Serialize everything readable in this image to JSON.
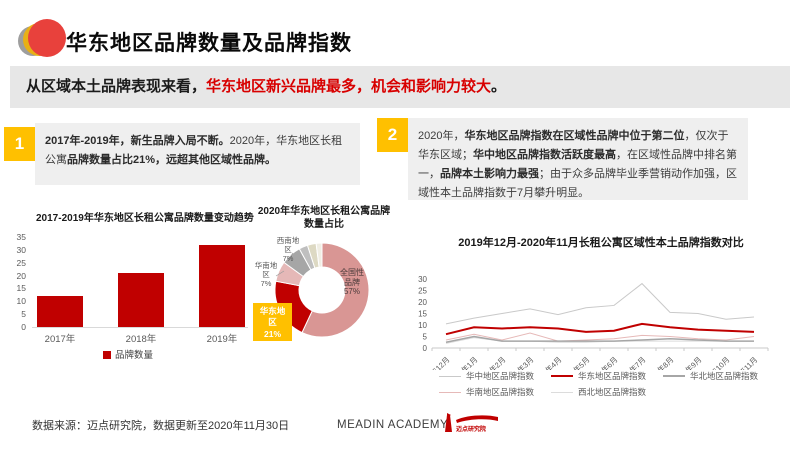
{
  "page": {
    "title": "华东地区品牌数量及品牌指数"
  },
  "key_message": {
    "black": "从区域本土品牌表现来看，",
    "red": "华东地区新兴品牌最多，机会和影响力较大",
    "end": "。"
  },
  "notes": [
    {
      "number": "1",
      "segments": [
        {
          "text": "2017年-2019年，新生品牌入局不断。",
          "bold": true
        },
        {
          "text": "2020年，华东地区长租公寓",
          "bold": false
        },
        {
          "text": "品牌数量占比21%，远超其他区域性品牌。",
          "bold": true
        }
      ]
    },
    {
      "number": "2",
      "segments": [
        {
          "text": "2020年，",
          "bold": false
        },
        {
          "text": "华东地区品牌指数在区域性品牌中位于第二位",
          "bold": true
        },
        {
          "text": "，仅次于华东区域；",
          "bold": false
        },
        {
          "text": "华中地区品牌指数活跃度最高",
          "bold": true
        },
        {
          "text": "，在区域性品牌中排名第一，",
          "bold": false
        },
        {
          "text": "品牌本土影响力最强",
          "bold": true
        },
        {
          "text": "；由于众多品牌毕业季营销动作加强，区域性本土品牌指数于7月攀升明显。",
          "bold": false
        }
      ]
    }
  ],
  "chart_data": [
    {
      "type": "bar",
      "title": "2017-2019年华东地区长租公寓品牌数量变动趋势",
      "categories": [
        "2017年",
        "2018年",
        "2019年"
      ],
      "values": [
        12,
        21,
        32
      ],
      "ylim": [
        0,
        35
      ],
      "ytick_step": 5,
      "bar_color": "#c00000",
      "legend": [
        {
          "label": "品牌数量",
          "color": "#c00000"
        }
      ]
    },
    {
      "type": "pie",
      "title": "2020年华东地区长租公寓品牌数量占比",
      "donut": true,
      "slices": [
        {
          "label": "全国性品牌",
          "value": 57,
          "color": "#d99694"
        },
        {
          "label": "华东地区",
          "value": 21,
          "color": "#c00000",
          "highlight": true
        },
        {
          "label": "华南地区",
          "value": 7,
          "color": "#e5b8b7"
        },
        {
          "label": "西南地区",
          "value": 7,
          "color": "#a6a6a6"
        },
        {
          "label": "",
          "value": 3,
          "color": "#bfbfbf"
        },
        {
          "label": "",
          "value": 3,
          "color": "#ddd9c3"
        },
        {
          "label": "",
          "value": 2,
          "color": "#f0eee4"
        }
      ],
      "callouts": {
        "national": [
          "全国性",
          "品牌",
          "57%"
        ],
        "huadong": [
          "华东地",
          "区",
          "21%"
        ],
        "huanan": [
          "华南地",
          "区",
          "7%"
        ],
        "xinan": [
          "西南地",
          "区",
          "7%"
        ]
      }
    },
    {
      "type": "line",
      "title": "2019年12月-2020年11月长租公寓区域性本土品牌指数对比",
      "x": [
        "2019年12月",
        "2020年1月",
        "2020年2月",
        "2020年3月",
        "2020年4月",
        "2020年5月",
        "2020年6月",
        "2020年7月",
        "2020年8月",
        "2020年9月",
        "2020年10月",
        "2020年11月"
      ],
      "ylim": [
        0,
        30
      ],
      "ytick_step": 5,
      "series": [
        {
          "name": "华中地区品牌指数",
          "color": "#c9c9c9",
          "width": 1,
          "values": [
            10.5,
            13,
            15,
            17,
            14.5,
            17.5,
            18.5,
            28,
            15.5,
            15,
            12.5,
            13.5
          ]
        },
        {
          "name": "华东地区品牌指数",
          "color": "#c00000",
          "width": 2,
          "values": [
            6,
            9,
            8.5,
            9,
            8.5,
            7,
            7.5,
            10.5,
            9,
            8,
            7.5,
            7
          ]
        },
        {
          "name": "华北地区品牌指数",
          "color": "#a6a6a6",
          "width": 1.5,
          "values": [
            2.5,
            5,
            3,
            3,
            3,
            3,
            3,
            3.5,
            4,
            3.5,
            3,
            3
          ]
        },
        {
          "name": "华南地区品牌指数",
          "color": "#e6b9b8",
          "width": 1,
          "values": [
            3.5,
            6,
            3.5,
            6.5,
            3,
            3.5,
            4,
            5.5,
            5,
            4,
            3.5,
            5
          ]
        },
        {
          "name": "西北地区品牌指数",
          "color": "#dcdcdc",
          "width": 1,
          "values": [
            2,
            4.5,
            3,
            3,
            2.5,
            2.5,
            3,
            3,
            3,
            3,
            3,
            3
          ]
        }
      ],
      "legend_order": [
        0,
        1,
        2,
        3,
        4
      ],
      "legend_position": "bottom"
    }
  ],
  "footer": {
    "source": "数据来源：迈点研究院，数据更新至2020年11月30日",
    "academy": "MEADIN ACADEMY|",
    "logo_text": "迈点研究院"
  }
}
